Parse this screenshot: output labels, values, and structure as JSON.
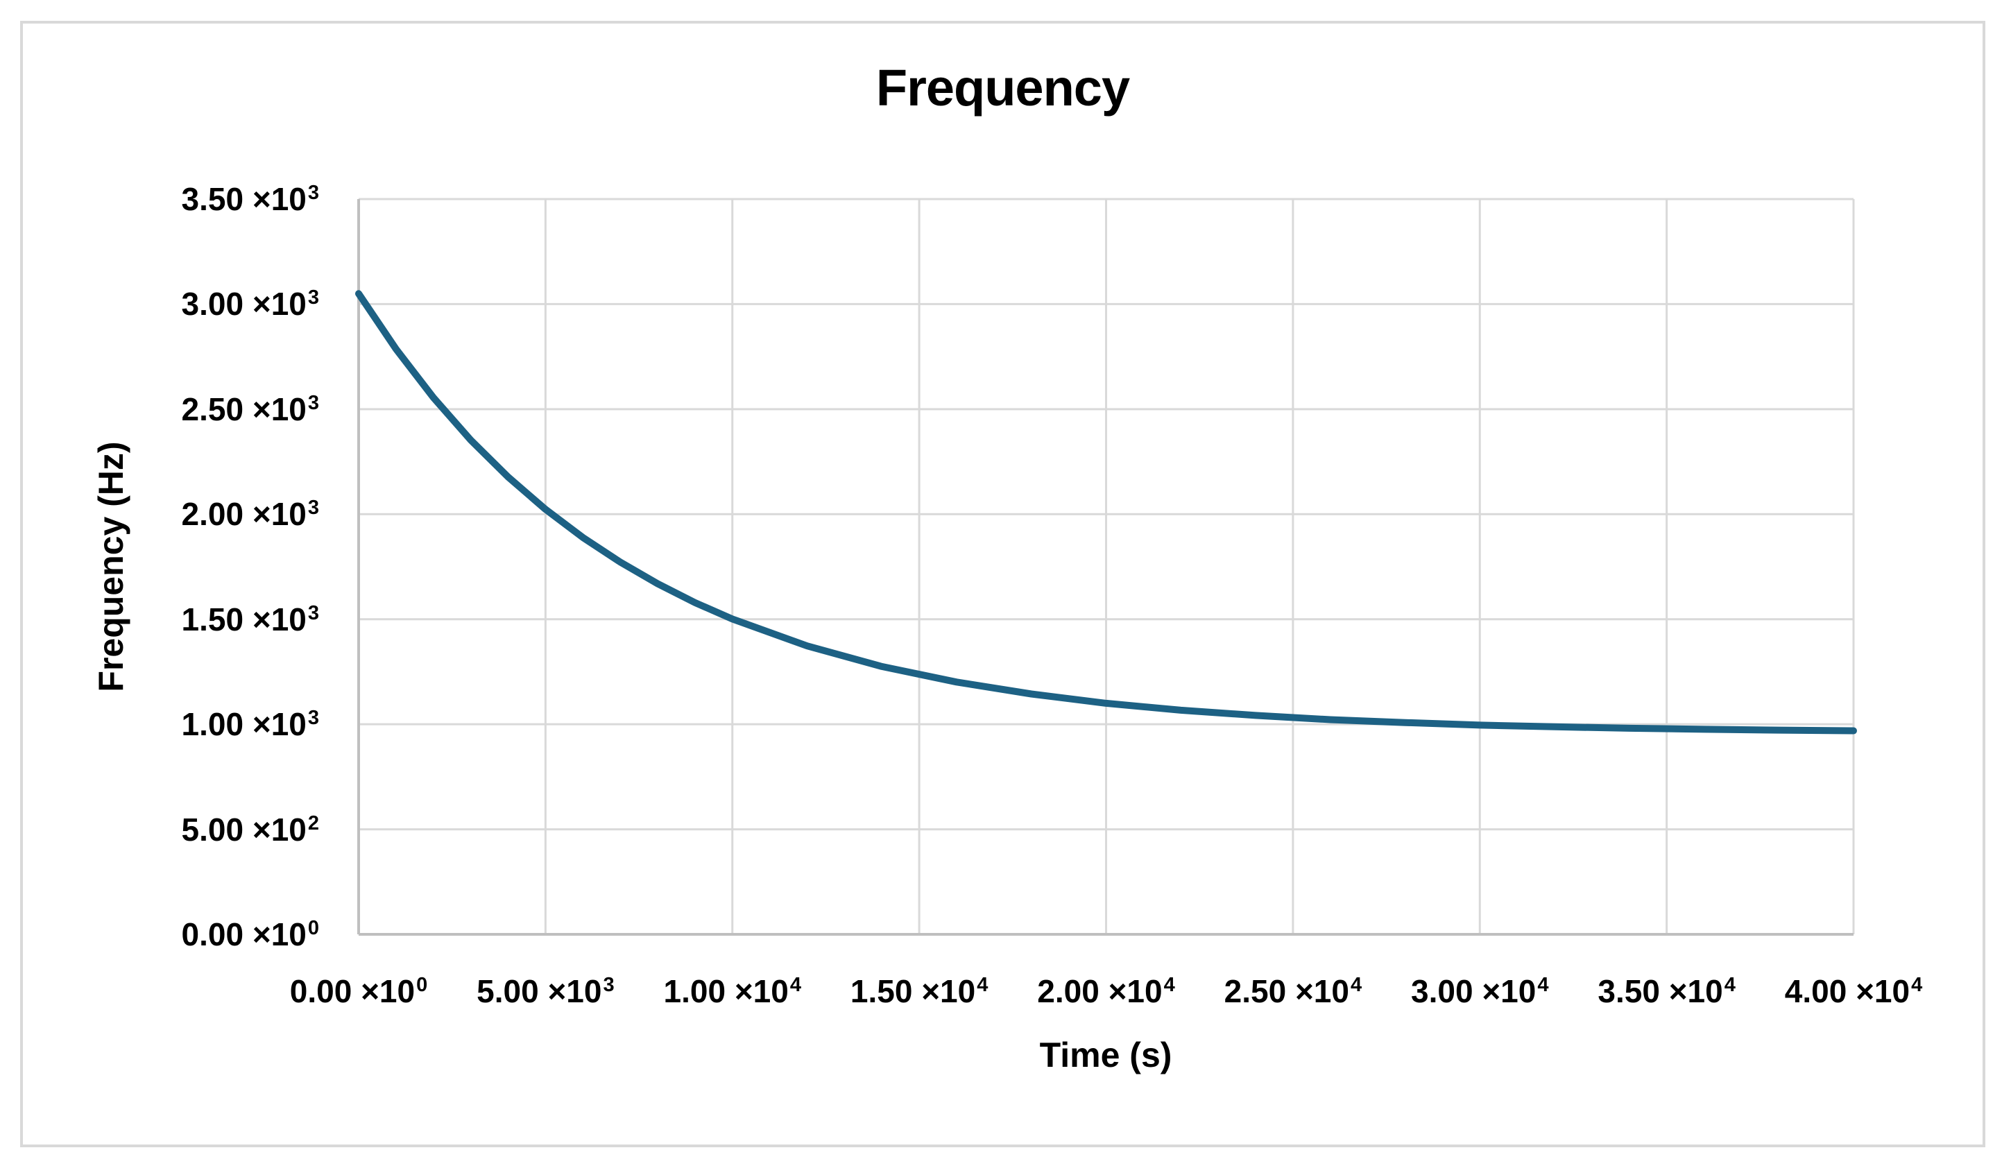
{
  "chart_data": {
    "type": "line",
    "title": "Frequency",
    "xlabel": "Time (s)",
    "ylabel": "Frequency (Hz)",
    "xlim": [
      0,
      40000
    ],
    "ylim": [
      0,
      3500
    ],
    "grid": true,
    "legend": "none",
    "x_ticks": [
      {
        "value": 0,
        "m": "0.00",
        "e": "0"
      },
      {
        "value": 5000,
        "m": "5.00",
        "e": "3"
      },
      {
        "value": 10000,
        "m": "1.00",
        "e": "4"
      },
      {
        "value": 15000,
        "m": "1.50",
        "e": "4"
      },
      {
        "value": 20000,
        "m": "2.00",
        "e": "4"
      },
      {
        "value": 25000,
        "m": "2.50",
        "e": "4"
      },
      {
        "value": 30000,
        "m": "3.00",
        "e": "4"
      },
      {
        "value": 35000,
        "m": "3.50",
        "e": "4"
      },
      {
        "value": 40000,
        "m": "4.00",
        "e": "4"
      }
    ],
    "y_ticks": [
      {
        "value": 0,
        "m": "0.00",
        "e": "0"
      },
      {
        "value": 500,
        "m": "5.00",
        "e": "2"
      },
      {
        "value": 1000,
        "m": "1.00",
        "e": "3"
      },
      {
        "value": 1500,
        "m": "1.50",
        "e": "3"
      },
      {
        "value": 2000,
        "m": "2.00",
        "e": "3"
      },
      {
        "value": 2500,
        "m": "2.50",
        "e": "3"
      },
      {
        "value": 3000,
        "m": "3.00",
        "e": "3"
      },
      {
        "value": 3500,
        "m": "3.50",
        "e": "3"
      }
    ],
    "series": [
      {
        "name": "Frequency",
        "x": [
          0,
          1000,
          2000,
          3000,
          4000,
          5000,
          6000,
          7000,
          8000,
          9000,
          10000,
          12000,
          14000,
          16000,
          18000,
          20000,
          22000,
          24000,
          26000,
          28000,
          30000,
          32000,
          34000,
          36000,
          38000,
          40000
        ],
        "y": [
          3050,
          2786,
          2555,
          2353,
          2177,
          2023,
          1889,
          1772,
          1669,
          1579,
          1501,
          1373,
          1275,
          1201,
          1144,
          1100,
          1067,
          1042,
          1022,
          1008,
          996,
          988,
          981,
          976,
          972,
          969
        ]
      }
    ],
    "colors": {
      "line": "#1d6184",
      "grid": "#d9d9d9",
      "axis": "#bfbfbf",
      "frame_border": "#d9d9d9",
      "text": "#000000",
      "background": "#ffffff"
    }
  }
}
